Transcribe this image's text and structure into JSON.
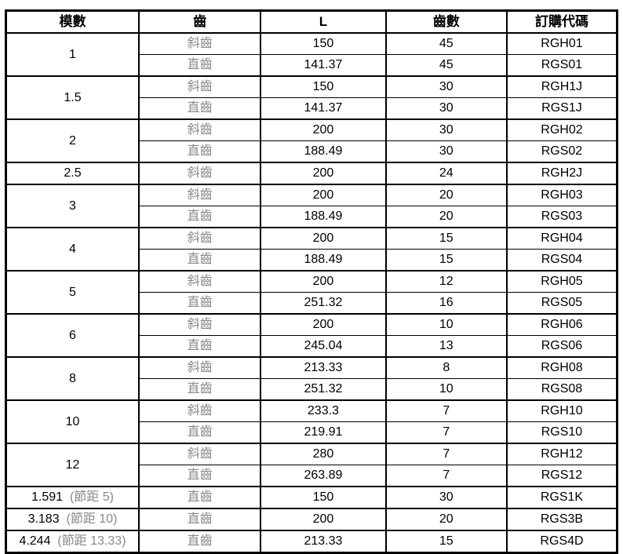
{
  "headers": [
    "模數",
    "齒",
    "L",
    "齒數",
    "訂購代碼"
  ],
  "groups": [
    {
      "module": "1",
      "rows": [
        {
          "tooth": "斜齒",
          "L": "150",
          "count": "45",
          "code": "RGH01"
        },
        {
          "tooth": "直齒",
          "L": "141.37",
          "count": "45",
          "code": "RGS01"
        }
      ]
    },
    {
      "module": "1.5",
      "rows": [
        {
          "tooth": "斜齒",
          "L": "150",
          "count": "30",
          "code": "RGH1J"
        },
        {
          "tooth": "直齒",
          "L": "141.37",
          "count": "30",
          "code": "RGS1J"
        }
      ]
    },
    {
      "module": "2",
      "rows": [
        {
          "tooth": "斜齒",
          "L": "200",
          "count": "30",
          "code": "RGH02"
        },
        {
          "tooth": "直齒",
          "L": "188.49",
          "count": "30",
          "code": "RGS02"
        }
      ]
    },
    {
      "module": "2.5",
      "rows": [
        {
          "tooth": "斜齒",
          "L": "200",
          "count": "24",
          "code": "RGH2J"
        }
      ]
    },
    {
      "module": "3",
      "rows": [
        {
          "tooth": "斜齒",
          "L": "200",
          "count": "20",
          "code": "RGH03"
        },
        {
          "tooth": "直齒",
          "L": "188.49",
          "count": "20",
          "code": "RGS03"
        }
      ]
    },
    {
      "module": "4",
      "rows": [
        {
          "tooth": "斜齒",
          "L": "200",
          "count": "15",
          "code": "RGH04"
        },
        {
          "tooth": "直齒",
          "L": "188.49",
          "count": "15",
          "code": "RGS04"
        }
      ]
    },
    {
      "module": "5",
      "rows": [
        {
          "tooth": "斜齒",
          "L": "200",
          "count": "12",
          "code": "RGH05"
        },
        {
          "tooth": "直齒",
          "L": "251.32",
          "count": "16",
          "code": "RGS05"
        }
      ]
    },
    {
      "module": "6",
      "rows": [
        {
          "tooth": "斜齒",
          "L": "200",
          "count": "10",
          "code": "RGH06"
        },
        {
          "tooth": "直齒",
          "L": "245.04",
          "count": "13",
          "code": "RGS06"
        }
      ]
    },
    {
      "module": "8",
      "rows": [
        {
          "tooth": "斜齒",
          "L": "213.33",
          "count": "8",
          "code": "RGH08"
        },
        {
          "tooth": "直齒",
          "L": "251.32",
          "count": "10",
          "code": "RGS08"
        }
      ]
    },
    {
      "module": "10",
      "rows": [
        {
          "tooth": "斜齒",
          "L": "233.3",
          "count": "7",
          "code": "RGH10"
        },
        {
          "tooth": "直齒",
          "L": "219.91",
          "count": "7",
          "code": "RGS10"
        }
      ]
    },
    {
      "module": "12",
      "rows": [
        {
          "tooth": "斜齒",
          "L": "280",
          "count": "7",
          "code": "RGH12"
        },
        {
          "tooth": "直齒",
          "L": "263.89",
          "count": "7",
          "code": "RGS12"
        }
      ]
    },
    {
      "module": "1.591",
      "pitch": "(節距 5)",
      "rows": [
        {
          "tooth": "直齒",
          "L": "150",
          "count": "30",
          "code": "RGS1K"
        }
      ]
    },
    {
      "module": "3.183",
      "pitch": "(節距 10)",
      "rows": [
        {
          "tooth": "直齒",
          "L": "200",
          "count": "20",
          "code": "RGS3B"
        }
      ]
    },
    {
      "module": "4.244",
      "pitch": "(節距 13.33)",
      "rows": [
        {
          "tooth": "直齒",
          "L": "213.33",
          "count": "15",
          "code": "RGS4D"
        }
      ]
    }
  ]
}
